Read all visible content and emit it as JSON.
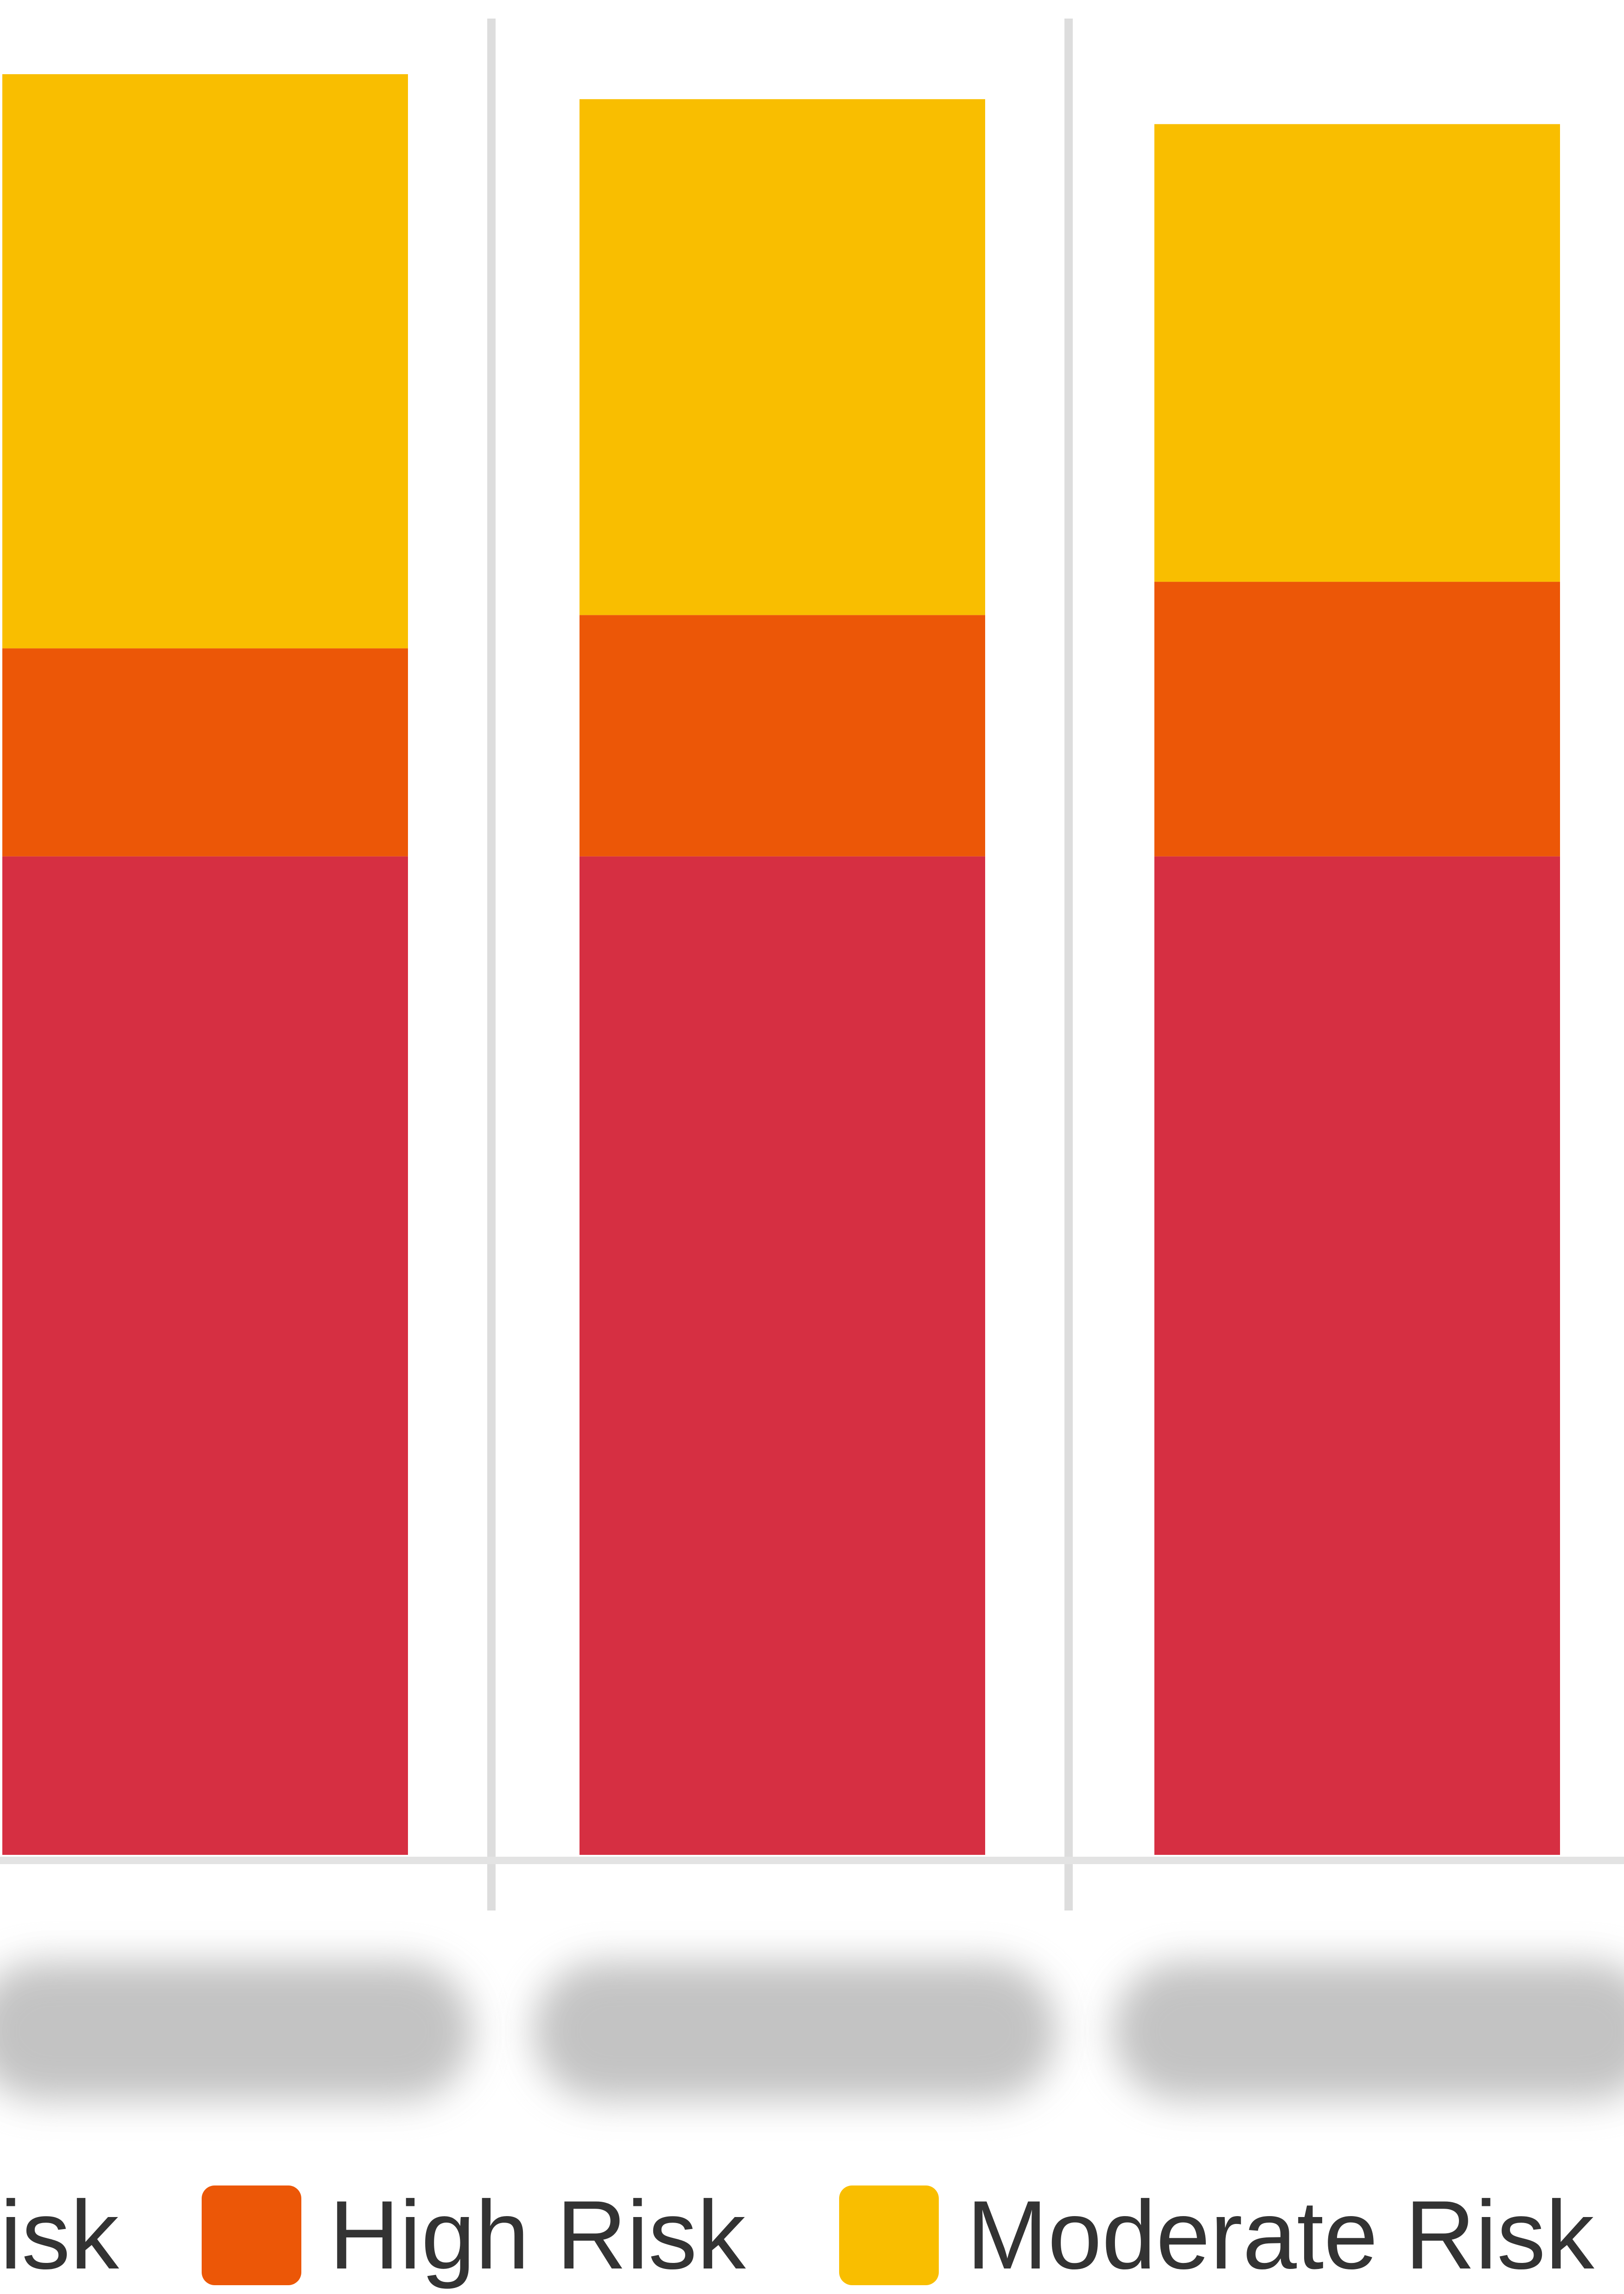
{
  "chart_data": {
    "type": "bar",
    "stacked": true,
    "categories": [
      "",
      "",
      ""
    ],
    "series": [
      {
        "name": "isk",
        "color": "#d62f42",
        "values": [
          60,
          60,
          60
        ]
      },
      {
        "name": "High Risk",
        "color": "#ec5707",
        "values": [
          12.5,
          14.5,
          16.5
        ]
      },
      {
        "name": "Moderate Risk",
        "color": "#f9be00",
        "values": [
          34.5,
          31,
          27.5
        ]
      }
    ],
    "ylim": [
      0,
      107
    ],
    "grid": true,
    "legend_position": "bottom",
    "xlabel": "",
    "ylabel": ""
  },
  "legend": {
    "items": [
      {
        "label": "isk",
        "color": "#d62f42"
      },
      {
        "label": "High Risk",
        "color": "#ec5707"
      },
      {
        "label": "Moderate Risk",
        "color": "#f9be00"
      }
    ]
  }
}
